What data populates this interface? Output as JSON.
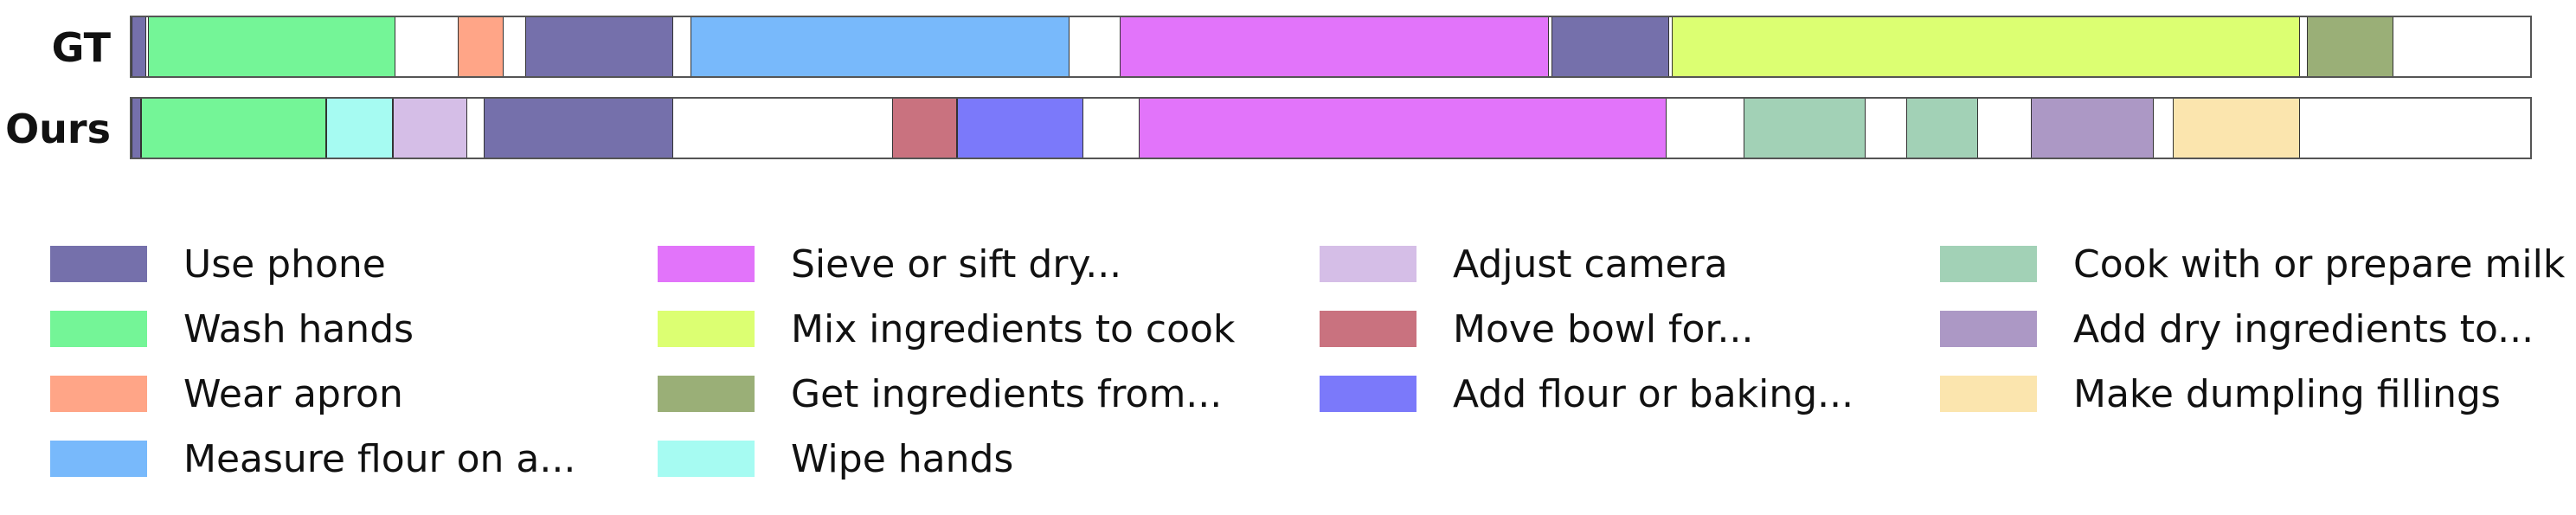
{
  "rows": [
    {
      "label": "GT",
      "segments": [
        {
          "action": "Use phone",
          "start": 0.0,
          "end": 0.006
        },
        {
          "action": "Wash hands",
          "start": 0.007,
          "end": 0.11
        },
        {
          "action": "Wear apron",
          "start": 0.136,
          "end": 0.155
        },
        {
          "action": "Use phone",
          "start": 0.164,
          "end": 0.226
        },
        {
          "action": "Measure flour on a...",
          "start": 0.233,
          "end": 0.391
        },
        {
          "action": "Sieve or sift dry...",
          "start": 0.412,
          "end": 0.591
        },
        {
          "action": "Use phone",
          "start": 0.592,
          "end": 0.641
        },
        {
          "action": "Mix ingredients to cook",
          "start": 0.642,
          "end": 0.904
        },
        {
          "action": "Get ingredients from...",
          "start": 0.907,
          "end": 0.943
        }
      ]
    },
    {
      "label": "Ours",
      "segments": [
        {
          "action": "Use phone",
          "start": 0.0,
          "end": 0.004
        },
        {
          "action": "Wash hands",
          "start": 0.004,
          "end": 0.081
        },
        {
          "action": "Wipe hands",
          "start": 0.081,
          "end": 0.109
        },
        {
          "action": "Adjust camera",
          "start": 0.109,
          "end": 0.14
        },
        {
          "action": "Use phone",
          "start": 0.147,
          "end": 0.226
        },
        {
          "action": "Move bowl for...",
          "start": 0.317,
          "end": 0.344
        },
        {
          "action": "Add flour or baking...",
          "start": 0.344,
          "end": 0.397
        },
        {
          "action": "Sieve or sift dry...",
          "start": 0.42,
          "end": 0.64
        },
        {
          "action": "Cook with or prepare milk",
          "start": 0.672,
          "end": 0.723
        },
        {
          "action": "Cook with or prepare milk",
          "start": 0.74,
          "end": 0.77
        },
        {
          "action": "Add dry ingredients to...",
          "start": 0.792,
          "end": 0.843
        },
        {
          "action": "Make dumpling fillings",
          "start": 0.851,
          "end": 0.904
        }
      ]
    }
  ],
  "legend": [
    {
      "label": "Use phone",
      "color": "#7570ab"
    },
    {
      "label": "Wash hands",
      "color": "#74f597"
    },
    {
      "label": "Wear apron",
      "color": "#ffa587"
    },
    {
      "label": "Measure flour on a...",
      "color": "#78b9fb"
    },
    {
      "label": "Sieve or sift dry...",
      "color": "#e274fa"
    },
    {
      "label": "Mix ingredients to cook",
      "color": "#dcff72"
    },
    {
      "label": "Get ingredients from...",
      "color": "#9aaf77"
    },
    {
      "label": "Wipe hands",
      "color": "#a6fbf2"
    },
    {
      "label": "Adjust camera",
      "color": "#d5bee7"
    },
    {
      "label": "Move bowl for...",
      "color": "#c9727f"
    },
    {
      "label": "Add flour or baking...",
      "color": "#7b79fa"
    },
    {
      "label": "Cook with or prepare milk",
      "color": "#a2d1b6"
    },
    {
      "label": "Add dry ingredients to...",
      "color": "#ac98c5"
    },
    {
      "label": "Make dumpling fillings",
      "color": "#fbe5ae"
    }
  ]
}
